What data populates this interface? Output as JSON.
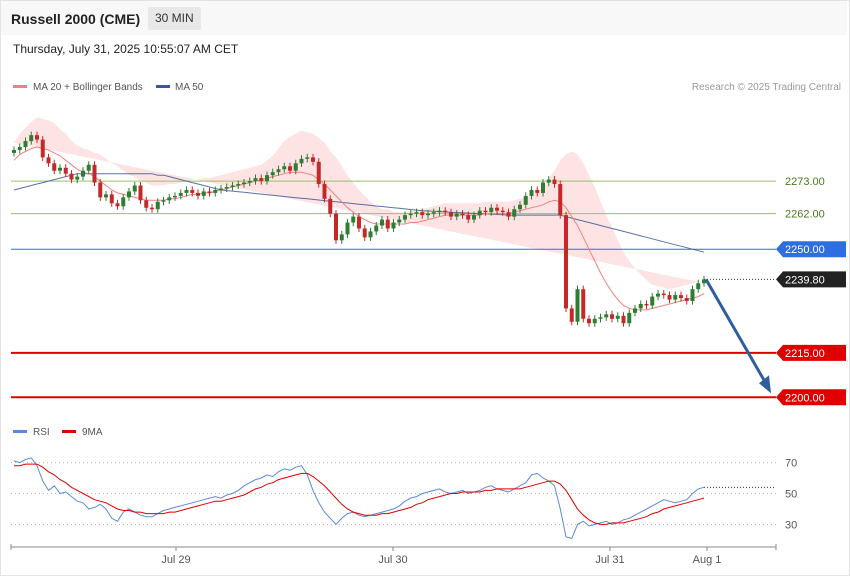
{
  "header": {
    "title": "Russell 2000 (CME)",
    "timeframe": "30 MIN",
    "datetime": "Thursday, July 31, 2025 10:55:07 AM CET"
  },
  "legend": {
    "ma20_label": "MA 20 + Bollinger Bands",
    "ma50_label": "MA 50",
    "credit": "Research © 2025 Trading Central",
    "rsi_label": "RSI",
    "rsi_ma_label": "9MA"
  },
  "colors": {
    "ma20": "#f08080",
    "bands_fill": "#fde0e0",
    "ma50": "#3b5998",
    "up_candle": "#2e7d32",
    "down_candle": "#c62828",
    "support": "#e00000",
    "pivot": "#2d6fe0",
    "resistance": "#9bbf6a",
    "arrow": "#2e5e9e",
    "rsi": "#5b8bd6",
    "rsi_ma": "#e00000"
  },
  "chart_data": [
    {
      "type": "candlestick",
      "title": "",
      "x_labels": [
        "Jul 29",
        "Jul 30",
        "Jul 31",
        "Aug 1"
      ],
      "ylim": [
        2193,
        2297
      ],
      "last_price": 2239.8,
      "levels": [
        {
          "label": "2273.00",
          "value": 2273.0,
          "kind": "resistance"
        },
        {
          "label": "2262.00",
          "value": 2262.0,
          "kind": "resistance"
        },
        {
          "label": "2250.00",
          "value": 2250.0,
          "kind": "pivot"
        },
        {
          "label": "2215.00",
          "value": 2215.0,
          "kind": "support"
        },
        {
          "label": "2200.00",
          "value": 2200.0,
          "kind": "support"
        }
      ],
      "close": [
        2283.5,
        2284.5,
        2286.5,
        2288.5,
        2287.0,
        2281.0,
        2279.0,
        2276.5,
        2277.5,
        2275.5,
        2273.5,
        2274.5,
        2276.5,
        2278.5,
        2272.5,
        2267.5,
        2268.5,
        2265.5,
        2264.5,
        2267.5,
        2269.5,
        2271.5,
        2266.5,
        2264.0,
        2263.5,
        2266.0,
        2266.5,
        2267.5,
        2268.0,
        2269.0,
        2270.0,
        2269.0,
        2268.0,
        2269.5,
        2269.0,
        2270.0,
        2270.5,
        2271.0,
        2271.5,
        2272.0,
        2272.5,
        2273.0,
        2274.0,
        2273.0,
        2275.0,
        2276.0,
        2277.0,
        2278.0,
        2276.5,
        2279.0,
        2280.5,
        2281.0,
        2279.5,
        2272.0,
        2267.0,
        2262.0,
        2253.0,
        2255.0,
        2259.0,
        2261.0,
        2257.0,
        2254.0,
        2256.0,
        2258.0,
        2260.0,
        2257.0,
        2259.0,
        2260.0,
        2261.5,
        2262.0,
        2262.5,
        2261.5,
        2262.0,
        2262.5,
        2263.0,
        2262.5,
        2261.0,
        2262.0,
        2261.5,
        2260.0,
        2261.5,
        2263.0,
        2262.5,
        2264.0,
        2263.0,
        2262.5,
        2261.0,
        2263.5,
        2265.0,
        2268.0,
        2270.0,
        2269.0,
        2272.5,
        2273.5,
        2272.0,
        2261.5,
        2230.0,
        2225.5,
        2236.5,
        2226.5,
        2225.0,
        2226.5,
        2227.0,
        2228.0,
        2226.5,
        2227.5,
        2225.0,
        2228.5,
        2230.0,
        2231.5,
        2231.0,
        2234.0,
        2235.0,
        2234.5,
        2233.0,
        2234.5,
        2233.5,
        2232.5,
        2236.5,
        2238.5,
        2239.8
      ],
      "ma20": [
        2280,
        2282,
        2283,
        2284,
        2284.5,
        2284,
        2283.5,
        2282.5,
        2281.5,
        2280,
        2278.5,
        2277,
        2276,
        2275.5,
        2274.5,
        2273,
        2271.5,
        2270,
        2269,
        2268.5,
        2268,
        2267.5,
        2267,
        2266.5,
        2266.5,
        2266.5,
        2266.5,
        2267,
        2267,
        2267.5,
        2268,
        2268.5,
        2268.5,
        2269,
        2269,
        2269.5,
        2270,
        2270.5,
        2271,
        2271.5,
        2272,
        2272.5,
        2273,
        2273.5,
        2274,
        2274.5,
        2275,
        2275.5,
        2276,
        2276,
        2276,
        2275.5,
        2275,
        2273.5,
        2272,
        2270,
        2268,
        2266,
        2264,
        2262.5,
        2261,
        2260,
        2259,
        2258.5,
        2258.5,
        2258.5,
        2258.5,
        2258.5,
        2258.5,
        2259,
        2259,
        2259.5,
        2260,
        2260.5,
        2261,
        2261.5,
        2261.5,
        2261.5,
        2261.5,
        2261.5,
        2261.5,
        2261.5,
        2262,
        2262,
        2262,
        2262,
        2262,
        2262.5,
        2263,
        2263.5,
        2264,
        2264.5,
        2265,
        2266,
        2266.5,
        2266,
        2264,
        2261,
        2258,
        2254,
        2250,
        2246,
        2242,
        2238.5,
        2235.5,
        2233,
        2231,
        2230,
        2229.5,
        2229.5,
        2229.5,
        2230,
        2230.5,
        2231,
        2231.5,
        2232,
        2232.5,
        2233,
        2233.5,
        2234,
        2235
      ],
      "ma50": [
        2270,
        2270.5,
        2271,
        2271.5,
        2272,
        2272.5,
        2273,
        2273.5,
        2274,
        2274.5,
        2275,
        2275.5,
        2275.5,
        2275.5,
        2275.5,
        2275.5,
        2275.5,
        2275.5,
        2275.5,
        2275.5,
        2275.5,
        2275.5,
        2275.5,
        2275.5,
        2275.5,
        2275,
        2275,
        2274.5,
        2274,
        2273.5,
        2273,
        2272.5,
        2272,
        2271.5,
        2271,
        2270.5,
        2270,
        2269.8,
        2269.6,
        2269.4,
        2269.2,
        2269,
        2268.8,
        2268.6,
        2268.4,
        2268.2,
        2268,
        2267.8,
        2267.6,
        2267.4,
        2267.2,
        2267,
        2266.8,
        2266.6,
        2266.4,
        2266.2,
        2266,
        2265.8,
        2265.6,
        2265.4,
        2265.2,
        2265,
        2264.8,
        2264.6,
        2264.4,
        2264.2,
        2264,
        2263.8,
        2263.6,
        2263.4,
        2263.2,
        2263,
        2262.9,
        2262.8,
        2262.7,
        2262.6,
        2262.5,
        2262.4,
        2262.3,
        2262.2,
        2262.1,
        2262,
        2261.9,
        2261.8,
        2261.7,
        2261.6,
        2261.5,
        2261.5,
        2261.5,
        2261.5,
        2261.5,
        2261.5,
        2261.5,
        2261.5,
        2261.5,
        2261.5,
        2261,
        2260.5,
        2260,
        2259.5,
        2259,
        2258.5,
        2258,
        2257.5,
        2257,
        2256.5,
        2256,
        2255.5,
        2255,
        2254.5,
        2254,
        2253.5,
        2253,
        2252.5,
        2252,
        2251.5,
        2251,
        2250.5,
        2250,
        2249.5,
        2249
      ],
      "bb_width": [
        6,
        7,
        8,
        9,
        10,
        10,
        10,
        10,
        9,
        9,
        8,
        8,
        8,
        8,
        8,
        9,
        9,
        9,
        9,
        8,
        7,
        7,
        6,
        6,
        5,
        5,
        5,
        5,
        5,
        5,
        5,
        5,
        5,
        5,
        5,
        5,
        5,
        5,
        5,
        5,
        5,
        5,
        5,
        5,
        6,
        7,
        9,
        11,
        12,
        13,
        14,
        14,
        14,
        14,
        14,
        13,
        13,
        12,
        11,
        10,
        9,
        8,
        7,
        6,
        5,
        5,
        4,
        4,
        4,
        4,
        4,
        4,
        4,
        4,
        4,
        4,
        4,
        4,
        4,
        4,
        4,
        4,
        4,
        4,
        4,
        4,
        4,
        4,
        4,
        4,
        4,
        5,
        6,
        8,
        10,
        14,
        18,
        22,
        24,
        25,
        25,
        25,
        24,
        23,
        22,
        20,
        18,
        16,
        14,
        12,
        10,
        8,
        7,
        6,
        5,
        5,
        5,
        5,
        5,
        5
      ]
    },
    {
      "type": "line",
      "title": "",
      "yticks": [
        70,
        50,
        30
      ],
      "ylim": [
        18,
        82
      ],
      "series": [
        {
          "name": "RSI",
          "values": [
            71,
            70,
            72,
            73,
            68,
            58,
            52,
            55,
            50,
            51,
            48,
            45,
            44,
            40,
            41,
            43,
            40,
            34,
            32,
            38,
            40,
            38,
            36,
            35,
            35,
            37,
            39,
            40,
            41,
            42,
            43,
            44,
            45,
            46,
            47,
            48,
            47,
            49,
            50,
            52,
            55,
            57,
            59,
            60,
            62,
            61,
            64,
            66,
            65,
            67,
            68,
            62,
            52,
            44,
            38,
            34,
            30,
            34,
            37,
            38,
            36,
            35,
            36,
            37,
            38,
            39,
            40,
            42,
            45,
            47,
            48,
            50,
            51,
            52,
            53,
            51,
            50,
            51,
            52,
            50,
            51,
            52,
            54,
            55,
            53,
            52,
            51,
            53,
            55,
            57,
            62,
            63,
            60,
            58,
            55,
            40,
            22,
            21,
            30,
            32,
            29,
            30,
            31,
            32,
            30,
            31,
            33,
            34,
            36,
            38,
            40,
            42,
            44,
            46,
            45,
            44,
            45,
            46,
            50,
            53,
            54
          ]
        },
        {
          "name": "9MA",
          "values": [
            68,
            68,
            69,
            69,
            69,
            67,
            64,
            62,
            59,
            57,
            54,
            52,
            50,
            48,
            46,
            45,
            44,
            42,
            40,
            39,
            39,
            38,
            38,
            37,
            37,
            37,
            37,
            38,
            38,
            39,
            40,
            41,
            42,
            43,
            44,
            45,
            45,
            46,
            47,
            48,
            49,
            51,
            53,
            54,
            56,
            57,
            59,
            60,
            61,
            62,
            63,
            63,
            61,
            58,
            55,
            51,
            47,
            43,
            40,
            38,
            37,
            36,
            36,
            36,
            37,
            37,
            38,
            39,
            40,
            41,
            43,
            44,
            46,
            47,
            48,
            49,
            50,
            50,
            51,
            51,
            51,
            51,
            52,
            52,
            53,
            53,
            53,
            53,
            53,
            54,
            55,
            56,
            57,
            58,
            58,
            56,
            52,
            46,
            40,
            36,
            33,
            31,
            30,
            30,
            31,
            31,
            31,
            32,
            33,
            34,
            35,
            37,
            38,
            40,
            41,
            42,
            43,
            44,
            45,
            46,
            47
          ]
        }
      ]
    }
  ]
}
